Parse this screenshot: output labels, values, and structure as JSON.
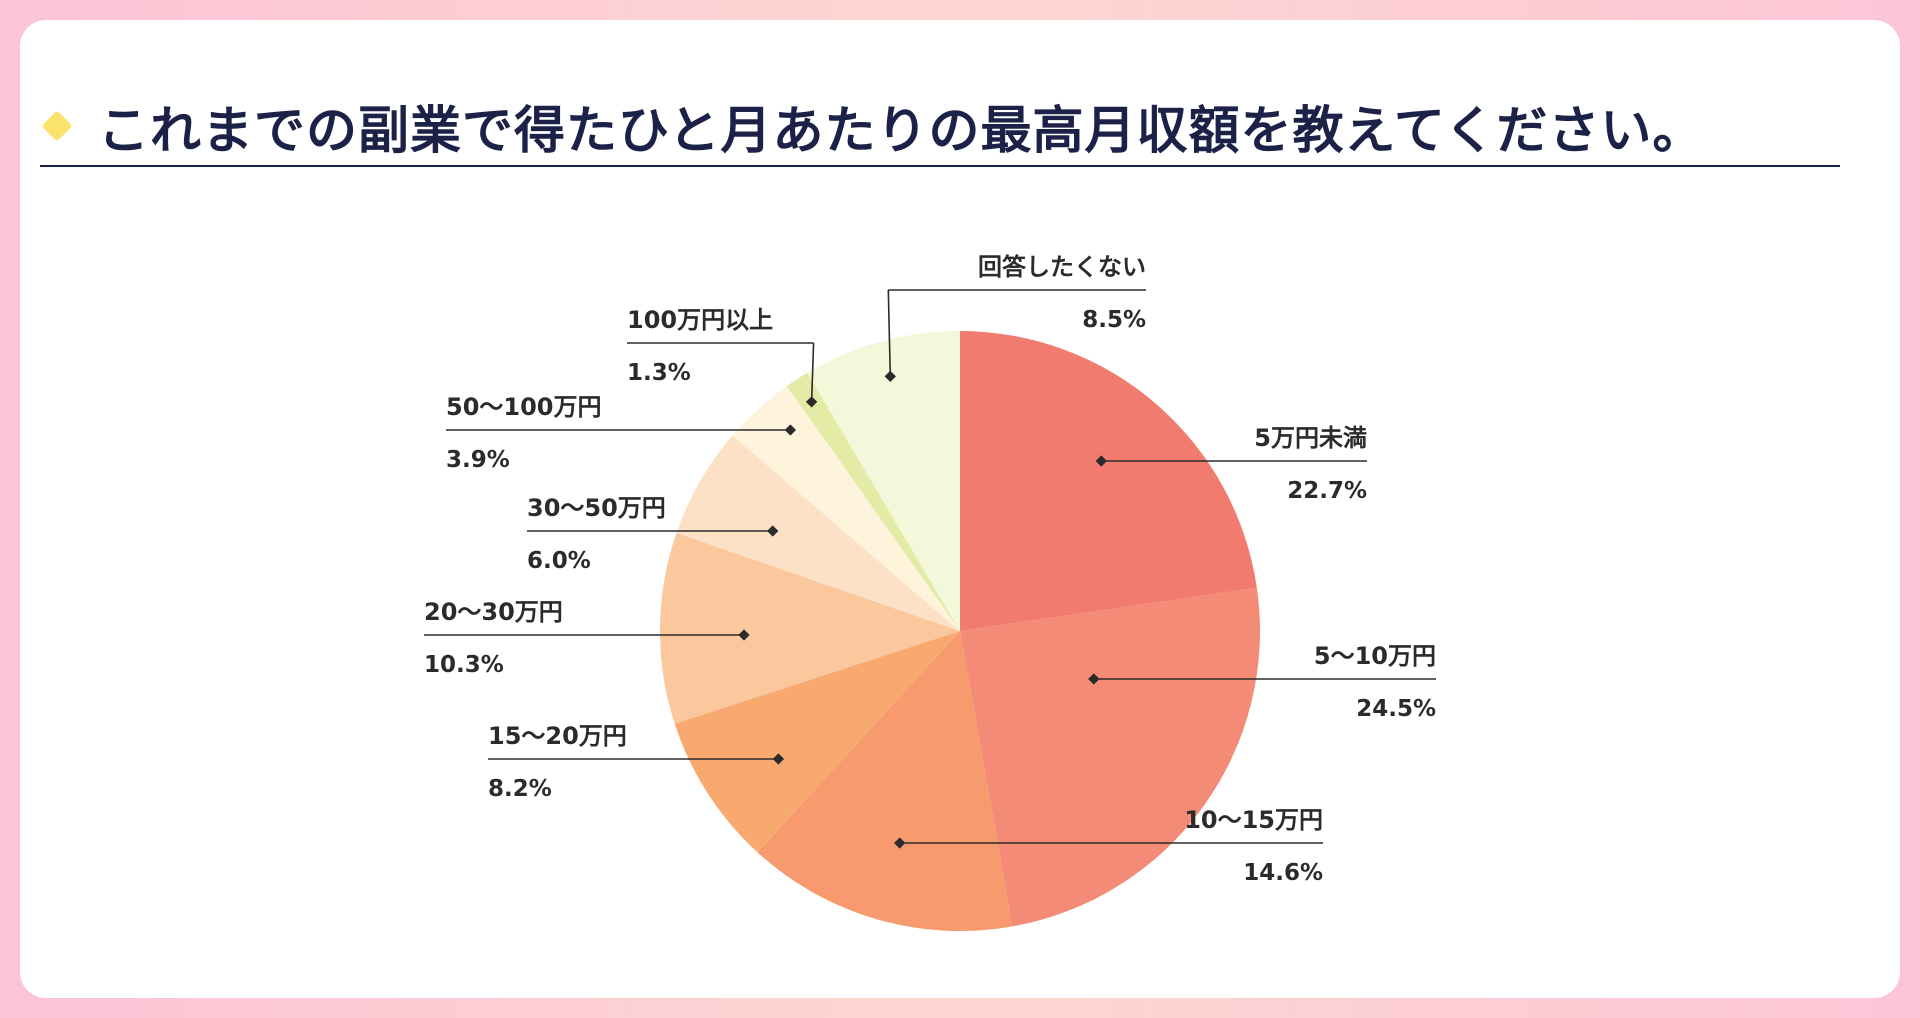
{
  "title": "これまでの副業で得たひと月あたりの最高月収額を教えてください。",
  "colors": {
    "background": "#fcc9d6",
    "card": "#ffffff",
    "title": "#1c2147",
    "accent_diamond": "#fbe26c",
    "leader": "#2b2b2b"
  },
  "chart_data": {
    "type": "pie",
    "title": "これまでの副業で得たひと月あたりの最高月収額を教えてください。",
    "start_angle_deg": 0,
    "direction": "clockwise",
    "slices": [
      {
        "label": "5万円未満",
        "value": 22.7,
        "value_label": "22.7%",
        "color": "#f27b70"
      },
      {
        "label": "5〜10万円",
        "value": 24.5,
        "value_label": "24.5%",
        "color": "#f48b77"
      },
      {
        "label": "10〜15万円",
        "value": 14.6,
        "value_label": "14.6%",
        "color": "#f79a6d"
      },
      {
        "label": "15〜20万円",
        "value": 8.2,
        "value_label": "8.2%",
        "color": "#f8a96f"
      },
      {
        "label": "20〜30万円",
        "value": 10.3,
        "value_label": "10.3%",
        "color": "#fbc79c"
      },
      {
        "label": "30〜50万円",
        "value": 6.0,
        "value_label": "6.0%",
        "color": "#fde1c7"
      },
      {
        "label": "50〜100万円",
        "value": 3.9,
        "value_label": "3.9%",
        "color": "#fef4dc"
      },
      {
        "label": "100万円以上",
        "value": 1.3,
        "value_label": "1.3%",
        "color": "#e3eba6"
      },
      {
        "label": "回答したくない",
        "value": 8.5,
        "value_label": "8.5%",
        "color": "#f3f8da"
      }
    ]
  }
}
